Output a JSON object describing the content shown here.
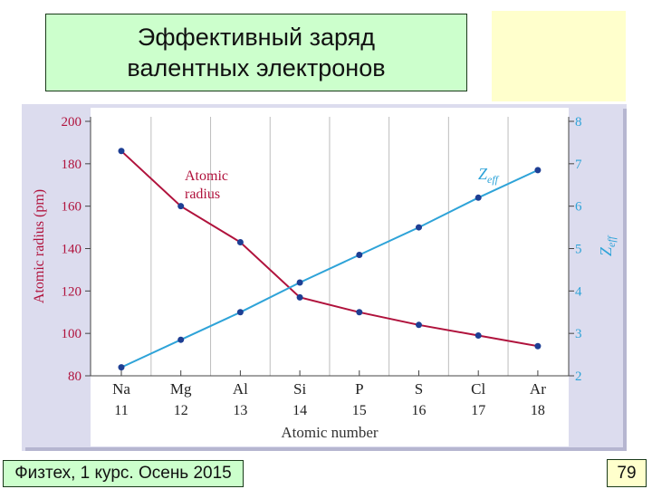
{
  "slide": {
    "title_line1": "Эффективный заряд",
    "title_line2": "валентных электронов",
    "footer": "Физтех, 1 курс. Осень 2015",
    "page_number": "79"
  },
  "colors": {
    "radius_series": "#b0123c",
    "zeff_series": "#2ea3d8",
    "figure_background": "#dcdcee",
    "plot_background": "#ffffff",
    "title_box": "#ccffcc",
    "side_box": "#ffffcc"
  },
  "chart_data": {
    "type": "line",
    "title": "",
    "xlabel": "Atomic number",
    "ylabel_left": "Atomic radius (pm)",
    "ylabel_right": "Z_eff",
    "x_elements": [
      "Na",
      "Mg",
      "Al",
      "Si",
      "P",
      "S",
      "Cl",
      "Ar"
    ],
    "x_numbers": [
      "11",
      "12",
      "13",
      "14",
      "15",
      "16",
      "17",
      "18"
    ],
    "ylim_left": [
      80,
      200
    ],
    "yticks_left": [
      80,
      100,
      120,
      140,
      160,
      180,
      200
    ],
    "ylim_right": [
      2,
      8
    ],
    "yticks_right": [
      2,
      3,
      4,
      5,
      6,
      7,
      8
    ],
    "grid": "vertical",
    "series": [
      {
        "name": "Atomic radius",
        "axis": "left",
        "label_line1": "Atomic",
        "label_line2": "radius",
        "values": [
          186,
          160,
          143,
          117,
          110,
          104,
          99,
          94
        ]
      },
      {
        "name": "Z_eff",
        "axis": "right",
        "label_main": "Z",
        "label_sub": "eff",
        "values": [
          2.2,
          2.85,
          3.5,
          4.2,
          4.85,
          5.5,
          6.2,
          6.85
        ]
      }
    ]
  }
}
